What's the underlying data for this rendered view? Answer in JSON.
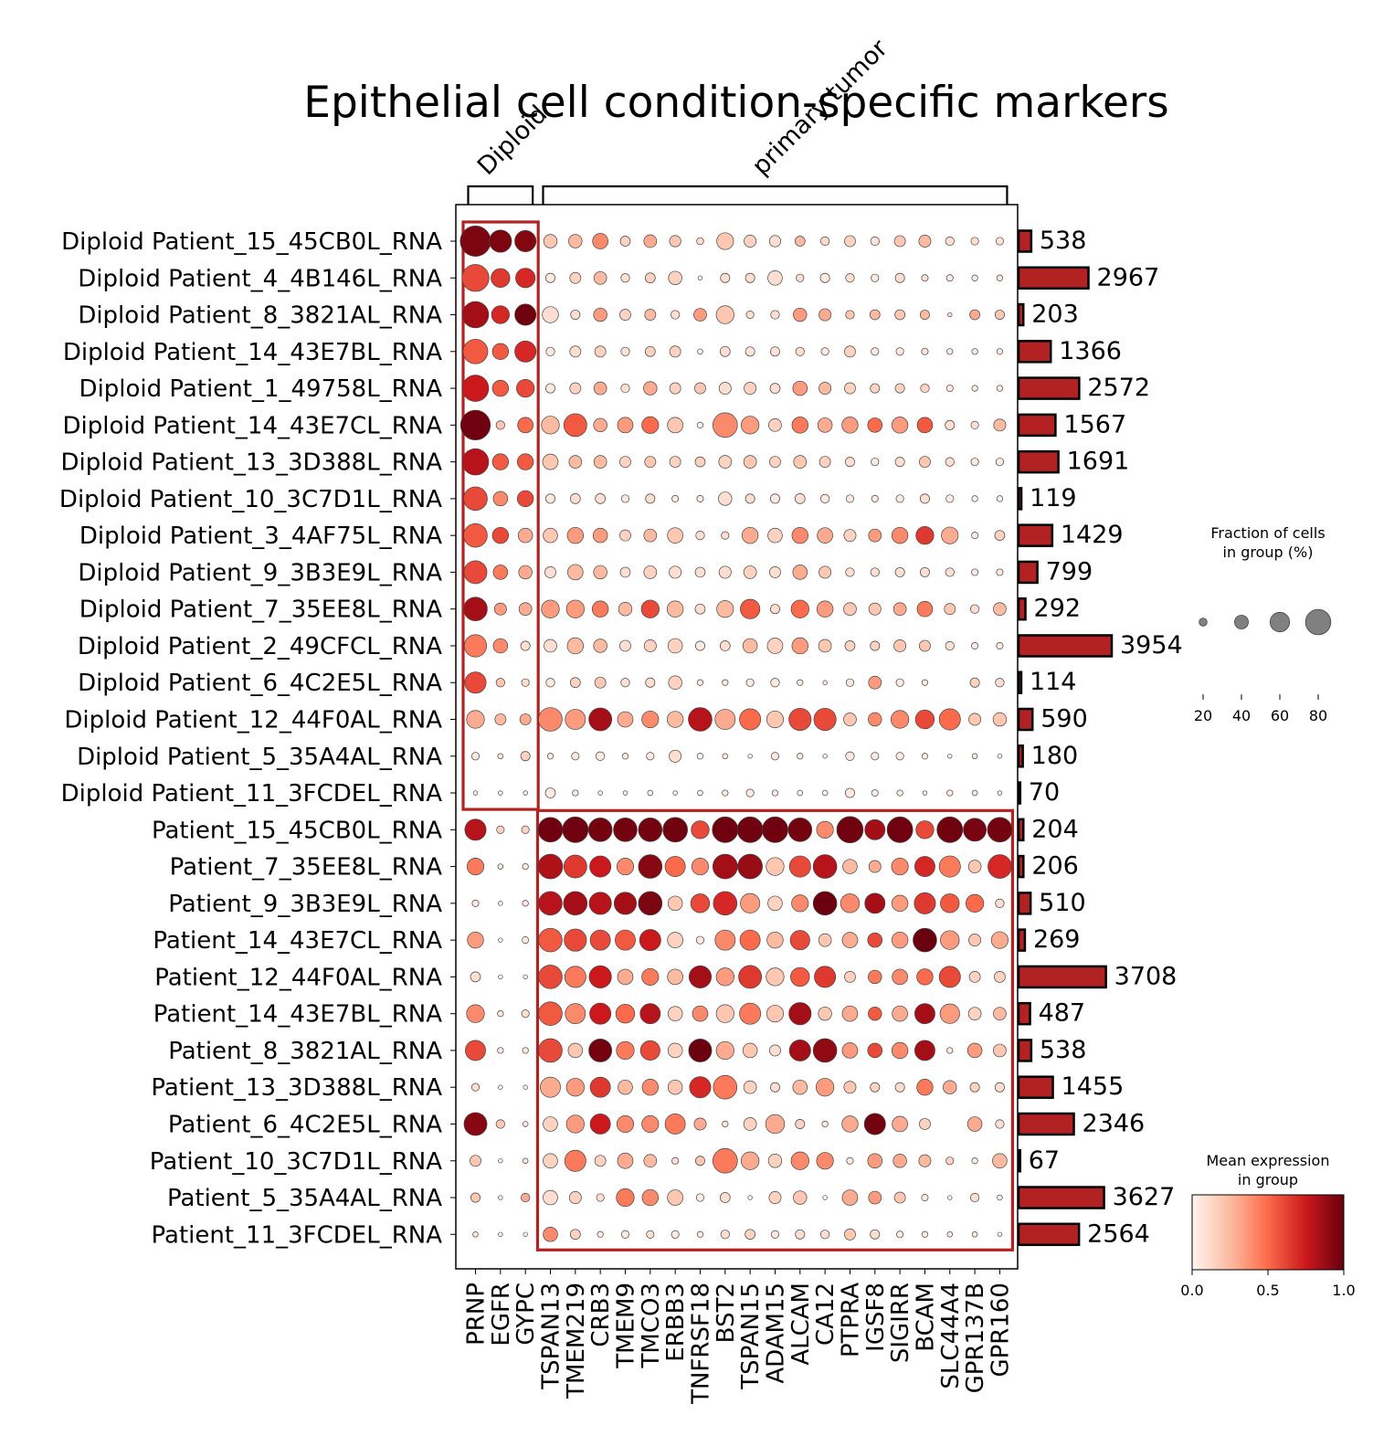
{
  "chart_data": {
    "type": "dotplot",
    "title": "Epithelial cell condition-specific markers",
    "var_groups": [
      {
        "label": "Diploid",
        "start": 0,
        "end": 2
      },
      {
        "label": "primary tumor",
        "start": 3,
        "end": 21
      }
    ],
    "genes": [
      "PRNP",
      "EGFR",
      "GYPC",
      "TSPAN13",
      "TMEM219",
      "CRB3",
      "TMEM9",
      "TMCO3",
      "ERBB3",
      "TNFRSF18",
      "BST2",
      "TSPAN15",
      "ADAM15",
      "ALCAM",
      "CA12",
      "PTPRA",
      "IGSF8",
      "SIGIRR",
      "BCAM",
      "SLC44A4",
      "GPR137B",
      "GPR160"
    ],
    "groups": [
      "Diploid Patient_15_45CB0L_RNA",
      "Diploid Patient_4_4B146L_RNA",
      "Diploid Patient_8_3821AL_RNA",
      "Diploid Patient_14_43E7BL_RNA",
      "Diploid Patient_1_49758L_RNA",
      "Diploid Patient_14_43E7CL_RNA",
      "Diploid Patient_13_3D388L_RNA",
      "Diploid Patient_10_3C7D1L_RNA",
      "Diploid Patient_3_4AF75L_RNA",
      "Diploid Patient_9_3B3E9L_RNA",
      "Diploid Patient_7_35EE8L_RNA",
      "Diploid Patient_2_49CFCL_RNA",
      "Diploid Patient_6_4C2E5L_RNA",
      "Diploid Patient_12_44F0AL_RNA",
      "Diploid Patient_5_35A4AL_RNA",
      "Diploid Patient_11_3FCDEL_RNA",
      "Patient_15_45CB0L_RNA",
      "Patient_7_35EE8L_RNA",
      "Patient_9_3B3E9L_RNA",
      "Patient_14_43E7CL_RNA",
      "Patient_12_44F0AL_RNA",
      "Patient_14_43E7BL_RNA",
      "Patient_8_3821AL_RNA",
      "Patient_13_3D388L_RNA",
      "Patient_6_4C2E5L_RNA",
      "Patient_10_3C7D1L_RNA",
      "Patient_5_35A4AL_RNA",
      "Patient_11_3FCDEL_RNA"
    ],
    "cell_counts": [
      538,
      2967,
      203,
      1366,
      2572,
      1567,
      1691,
      119,
      1429,
      799,
      292,
      3954,
      114,
      590,
      180,
      70,
      204,
      206,
      510,
      269,
      3708,
      487,
      538,
      1455,
      2346,
      67,
      3627,
      2564
    ],
    "fraction_pct": [
      [
        82,
        58,
        55,
        32,
        32,
        38,
        22,
        30,
        26,
        13,
        42,
        28,
        26,
        22,
        18,
        25,
        18,
        25,
        28,
        18,
        15,
        15
      ],
      [
        72,
        48,
        50,
        20,
        25,
        30,
        18,
        22,
        32,
        5,
        20,
        20,
        35,
        15,
        20,
        18,
        15,
        20,
        12,
        12,
        10,
        10
      ],
      [
        70,
        45,
        55,
        40,
        20,
        32,
        25,
        25,
        18,
        30,
        45,
        15,
        18,
        32,
        28,
        18,
        22,
        22,
        20,
        5,
        22,
        20
      ],
      [
        65,
        40,
        55,
        18,
        25,
        25,
        18,
        22,
        25,
        8,
        22,
        20,
        20,
        18,
        15,
        25,
        15,
        15,
        12,
        10,
        10,
        10
      ],
      [
        70,
        40,
        45,
        20,
        25,
        30,
        18,
        32,
        25,
        25,
        28,
        28,
        22,
        35,
        28,
        25,
        20,
        20,
        18,
        12,
        10,
        10
      ],
      [
        80,
        18,
        38,
        45,
        60,
        32,
        38,
        42,
        38,
        10,
        65,
        45,
        30,
        40,
        35,
        40,
        35,
        40,
        38,
        20,
        15,
        28
      ],
      [
        70,
        40,
        40,
        38,
        30,
        30,
        25,
        25,
        25,
        22,
        30,
        30,
        25,
        30,
        25,
        20,
        15,
        20,
        25,
        18,
        15,
        15
      ],
      [
        62,
        35,
        40,
        20,
        22,
        22,
        15,
        20,
        12,
        12,
        32,
        20,
        20,
        22,
        18,
        15,
        12,
        15,
        20,
        15,
        10,
        10
      ],
      [
        62,
        40,
        35,
        35,
        40,
        35,
        25,
        30,
        38,
        18,
        15,
        40,
        35,
        40,
        38,
        28,
        30,
        40,
        45,
        42,
        12,
        22
      ],
      [
        60,
        35,
        32,
        25,
        38,
        32,
        22,
        30,
        28,
        22,
        28,
        30,
        25,
        35,
        28,
        18,
        18,
        20,
        20,
        18,
        12,
        12
      ],
      [
        62,
        28,
        30,
        45,
        45,
        40,
        32,
        45,
        40,
        22,
        42,
        50,
        20,
        45,
        40,
        30,
        28,
        30,
        38,
        25,
        18,
        30
      ],
      [
        58,
        35,
        20,
        30,
        40,
        32,
        25,
        28,
        35,
        20,
        22,
        35,
        38,
        40,
        30,
        22,
        20,
        28,
        25,
        18,
        12,
        12
      ],
      [
        55,
        18,
        15,
        18,
        22,
        25,
        18,
        20,
        32,
        10,
        10,
        15,
        18,
        10,
        5,
        15,
        30,
        15,
        10,
        0,
        20,
        18
      ],
      [
        45,
        25,
        25,
        62,
        52,
        60,
        38,
        42,
        40,
        62,
        52,
        55,
        42,
        58,
        58,
        30,
        32,
        45,
        48,
        55,
        28,
        32
      ],
      [
        15,
        8,
        20,
        10,
        15,
        18,
        10,
        15,
        28,
        10,
        8,
        5,
        15,
        10,
        5,
        18,
        15,
        15,
        10,
        5,
        8,
        5
      ],
      [
        5,
        5,
        5,
        22,
        10,
        5,
        5,
        8,
        5,
        8,
        10,
        15,
        10,
        8,
        8,
        20,
        12,
        10,
        5,
        10,
        8,
        5
      ],
      [
        55,
        15,
        15,
        65,
        68,
        62,
        62,
        62,
        65,
        45,
        68,
        68,
        68,
        62,
        42,
        70,
        52,
        68,
        45,
        68,
        60,
        65
      ],
      [
        42,
        8,
        10,
        65,
        60,
        55,
        42,
        62,
        52,
        42,
        65,
        65,
        45,
        55,
        62,
        35,
        28,
        42,
        52,
        55,
        30,
        62
      ],
      [
        12,
        5,
        10,
        62,
        62,
        58,
        58,
        62,
        35,
        48,
        62,
        50,
        35,
        42,
        62,
        48,
        52,
        40,
        55,
        48,
        45,
        18
      ],
      [
        40,
        5,
        12,
        62,
        58,
        52,
        52,
        55,
        38,
        15,
        52,
        52,
        40,
        50,
        30,
        38,
        35,
        40,
        62,
        48,
        28,
        42
      ],
      [
        22,
        5,
        5,
        62,
        55,
        58,
        38,
        42,
        38,
        58,
        45,
        60,
        45,
        48,
        55,
        25,
        32,
        38,
        40,
        55,
        25,
        25
      ],
      [
        45,
        10,
        15,
        62,
        52,
        55,
        48,
        52,
        35,
        38,
        45,
        55,
        42,
        58,
        32,
        38,
        32,
        38,
        52,
        50,
        30,
        30
      ],
      [
        52,
        10,
        10,
        62,
        35,
        60,
        45,
        50,
        35,
        60,
        45,
        35,
        25,
        55,
        62,
        38,
        35,
        40,
        52,
        10,
        35,
        30
      ],
      [
        15,
        5,
        5,
        52,
        45,
        52,
        35,
        40,
        35,
        55,
        62,
        30,
        20,
        35,
        45,
        28,
        20,
        20,
        40,
        32,
        20,
        20
      ],
      [
        60,
        18,
        8,
        35,
        45,
        52,
        42,
        42,
        52,
        28,
        10,
        30,
        48,
        20,
        10,
        40,
        55,
        38,
        25,
        0,
        35,
        18
      ],
      [
        25,
        5,
        8,
        35,
        55,
        25,
        38,
        30,
        12,
        20,
        65,
        45,
        32,
        45,
        42,
        12,
        35,
        32,
        28,
        15,
        10,
        35
      ],
      [
        20,
        5,
        18,
        35,
        28,
        15,
        45,
        40,
        38,
        15,
        22,
        5,
        28,
        32,
        5,
        38,
        30,
        25,
        12,
        5,
        18,
        8
      ],
      [
        8,
        5,
        5,
        35,
        22,
        10,
        15,
        15,
        15,
        10,
        18,
        22,
        15,
        20,
        18,
        25,
        20,
        12,
        10,
        8,
        8,
        5
      ]
    ],
    "mean_expr": [
      [
        0.95,
        0.95,
        0.93,
        0.2,
        0.25,
        0.4,
        0.15,
        0.3,
        0.2,
        0.1,
        0.2,
        0.15,
        0.1,
        0.25,
        0.12,
        0.15,
        0.08,
        0.2,
        0.25,
        0.1,
        0.1,
        0.08
      ],
      [
        0.6,
        0.65,
        0.7,
        0.05,
        0.15,
        0.25,
        0.1,
        0.15,
        0.15,
        0.0,
        0.1,
        0.1,
        0.1,
        0.1,
        0.05,
        0.1,
        0.05,
        0.1,
        0.1,
        0.05,
        0.05,
        0.05
      ],
      [
        0.85,
        0.7,
        0.98,
        0.1,
        0.1,
        0.35,
        0.15,
        0.25,
        0.1,
        0.35,
        0.2,
        0.1,
        0.1,
        0.35,
        0.3,
        0.2,
        0.25,
        0.2,
        0.25,
        0.1,
        0.3,
        0.2
      ],
      [
        0.55,
        0.55,
        0.7,
        0.05,
        0.1,
        0.15,
        0.08,
        0.15,
        0.15,
        0.0,
        0.1,
        0.08,
        0.08,
        0.1,
        0.05,
        0.15,
        0.05,
        0.05,
        0.08,
        0.05,
        0.05,
        0.05
      ],
      [
        0.75,
        0.55,
        0.6,
        0.05,
        0.15,
        0.3,
        0.1,
        0.3,
        0.15,
        0.2,
        0.1,
        0.15,
        0.1,
        0.35,
        0.25,
        0.15,
        0.15,
        0.15,
        0.15,
        0.05,
        0.05,
        0.05
      ],
      [
        0.98,
        0.2,
        0.5,
        0.25,
        0.55,
        0.3,
        0.35,
        0.5,
        0.2,
        0.0,
        0.4,
        0.35,
        0.15,
        0.45,
        0.3,
        0.35,
        0.5,
        0.35,
        0.55,
        0.1,
        0.1,
        0.25
      ],
      [
        0.8,
        0.55,
        0.55,
        0.2,
        0.25,
        0.25,
        0.15,
        0.2,
        0.15,
        0.15,
        0.15,
        0.2,
        0.15,
        0.2,
        0.15,
        0.1,
        0.05,
        0.1,
        0.2,
        0.1,
        0.05,
        0.05
      ],
      [
        0.6,
        0.4,
        0.6,
        0.05,
        0.1,
        0.1,
        0.05,
        0.1,
        0.05,
        0.05,
        0.1,
        0.1,
        0.05,
        0.1,
        0.05,
        0.05,
        0.05,
        0.05,
        0.1,
        0.05,
        0.0,
        0.0
      ],
      [
        0.55,
        0.6,
        0.3,
        0.2,
        0.35,
        0.35,
        0.15,
        0.25,
        0.2,
        0.1,
        0.1,
        0.3,
        0.15,
        0.4,
        0.3,
        0.15,
        0.35,
        0.4,
        0.65,
        0.3,
        0.05,
        0.15
      ],
      [
        0.6,
        0.45,
        0.3,
        0.1,
        0.25,
        0.25,
        0.1,
        0.15,
        0.1,
        0.1,
        0.1,
        0.15,
        0.1,
        0.3,
        0.2,
        0.1,
        0.1,
        0.1,
        0.1,
        0.1,
        0.05,
        0.05
      ],
      [
        0.85,
        0.35,
        0.3,
        0.35,
        0.35,
        0.45,
        0.25,
        0.6,
        0.25,
        0.1,
        0.25,
        0.55,
        0.1,
        0.5,
        0.35,
        0.2,
        0.2,
        0.3,
        0.45,
        0.2,
        0.1,
        0.25
      ],
      [
        0.45,
        0.4,
        0.1,
        0.1,
        0.25,
        0.25,
        0.1,
        0.15,
        0.15,
        0.05,
        0.1,
        0.25,
        0.15,
        0.35,
        0.2,
        0.15,
        0.15,
        0.2,
        0.2,
        0.1,
        0.05,
        0.05
      ],
      [
        0.6,
        0.2,
        0.1,
        0.05,
        0.15,
        0.2,
        0.08,
        0.1,
        0.15,
        0.05,
        0.05,
        0.05,
        0.05,
        0.05,
        0.05,
        0.05,
        0.35,
        0.05,
        0.05,
        0.0,
        0.15,
        0.1
      ],
      [
        0.3,
        0.25,
        0.3,
        0.4,
        0.35,
        0.85,
        0.3,
        0.4,
        0.25,
        0.8,
        0.3,
        0.5,
        0.2,
        0.6,
        0.6,
        0.2,
        0.4,
        0.4,
        0.6,
        0.5,
        0.2,
        0.2
      ],
      [
        0.05,
        0.05,
        0.15,
        0.05,
        0.05,
        0.05,
        0.05,
        0.05,
        0.1,
        0.0,
        0.05,
        0.0,
        0.05,
        0.05,
        0.0,
        0.05,
        0.05,
        0.05,
        0.05,
        0.0,
        0.05,
        0.0
      ],
      [
        0.0,
        0.0,
        0.0,
        0.05,
        0.05,
        0.0,
        0.0,
        0.0,
        0.0,
        0.0,
        0.05,
        0.05,
        0.05,
        0.0,
        0.0,
        0.05,
        0.05,
        0.05,
        0.0,
        0.05,
        0.05,
        0.0
      ],
      [
        0.8,
        0.15,
        0.15,
        0.98,
        0.98,
        0.97,
        0.97,
        0.97,
        0.98,
        0.6,
        0.98,
        0.98,
        0.98,
        0.97,
        0.4,
        0.98,
        0.85,
        0.98,
        0.6,
        0.98,
        0.96,
        0.97
      ],
      [
        0.45,
        0.05,
        0.05,
        0.82,
        0.65,
        0.75,
        0.4,
        0.92,
        0.5,
        0.4,
        0.85,
        0.88,
        0.2,
        0.6,
        0.8,
        0.25,
        0.3,
        0.4,
        0.7,
        0.45,
        0.2,
        0.7
      ],
      [
        0.05,
        0.0,
        0.05,
        0.8,
        0.85,
        0.8,
        0.85,
        0.95,
        0.2,
        0.6,
        0.7,
        0.35,
        0.15,
        0.4,
        0.99,
        0.4,
        0.85,
        0.35,
        0.65,
        0.55,
        0.5,
        0.1
      ],
      [
        0.35,
        0.0,
        0.05,
        0.55,
        0.6,
        0.6,
        0.55,
        0.75,
        0.15,
        0.05,
        0.4,
        0.5,
        0.25,
        0.6,
        0.2,
        0.3,
        0.6,
        0.35,
        0.99,
        0.35,
        0.2,
        0.3
      ],
      [
        0.1,
        0.0,
        0.0,
        0.6,
        0.45,
        0.75,
        0.3,
        0.45,
        0.25,
        0.85,
        0.35,
        0.65,
        0.2,
        0.55,
        0.65,
        0.15,
        0.45,
        0.4,
        0.5,
        0.6,
        0.15,
        0.15
      ],
      [
        0.4,
        0.05,
        0.1,
        0.55,
        0.4,
        0.75,
        0.5,
        0.8,
        0.15,
        0.4,
        0.2,
        0.45,
        0.2,
        0.85,
        0.2,
        0.3,
        0.55,
        0.3,
        0.85,
        0.35,
        0.15,
        0.25
      ],
      [
        0.6,
        0.05,
        0.05,
        0.6,
        0.2,
        0.97,
        0.45,
        0.6,
        0.15,
        0.99,
        0.3,
        0.2,
        0.1,
        0.85,
        0.9,
        0.35,
        0.6,
        0.4,
        0.85,
        0.05,
        0.35,
        0.2
      ],
      [
        0.1,
        0.0,
        0.0,
        0.3,
        0.35,
        0.65,
        0.25,
        0.4,
        0.2,
        0.7,
        0.45,
        0.15,
        0.1,
        0.25,
        0.35,
        0.2,
        0.15,
        0.1,
        0.45,
        0.3,
        0.15,
        0.1
      ],
      [
        0.92,
        0.2,
        0.05,
        0.15,
        0.35,
        0.75,
        0.4,
        0.4,
        0.45,
        0.3,
        0.05,
        0.15,
        0.3,
        0.15,
        0.05,
        0.3,
        0.97,
        0.3,
        0.15,
        0.0,
        0.3,
        0.1
      ],
      [
        0.2,
        0.0,
        0.05,
        0.15,
        0.45,
        0.15,
        0.3,
        0.25,
        0.1,
        0.2,
        0.45,
        0.3,
        0.15,
        0.4,
        0.4,
        0.05,
        0.35,
        0.3,
        0.25,
        0.15,
        0.05,
        0.25
      ],
      [
        0.2,
        0.0,
        0.3,
        0.1,
        0.15,
        0.1,
        0.45,
        0.4,
        0.2,
        0.05,
        0.1,
        0.0,
        0.15,
        0.2,
        0.0,
        0.3,
        0.35,
        0.2,
        0.05,
        0.0,
        0.1,
        0.0
      ],
      [
        0.05,
        0.0,
        0.0,
        0.4,
        0.15,
        0.05,
        0.05,
        0.1,
        0.05,
        0.05,
        0.1,
        0.15,
        0.05,
        0.1,
        0.1,
        0.2,
        0.1,
        0.05,
        0.05,
        0.05,
        0.05,
        0.0
      ]
    ],
    "size_legend": {
      "title_line1": "Fraction of cells",
      "title_line2": "in group (%)",
      "values": [
        20,
        40,
        60,
        80
      ],
      "tick_labels": [
        "20",
        "40",
        "60",
        "80"
      ]
    },
    "color_legend": {
      "title_line1": "Mean expression",
      "title_line2": "in group",
      "range": [
        0,
        1
      ],
      "tick_labels": [
        "0.0",
        "0.5",
        "1.0"
      ],
      "colormap": [
        "#fff5f0",
        "#fcbba1",
        "#fb6a4a",
        "#cb181d",
        "#67000d"
      ]
    },
    "bar_color": "#b22222",
    "highlight_box_color": "#b22222"
  }
}
